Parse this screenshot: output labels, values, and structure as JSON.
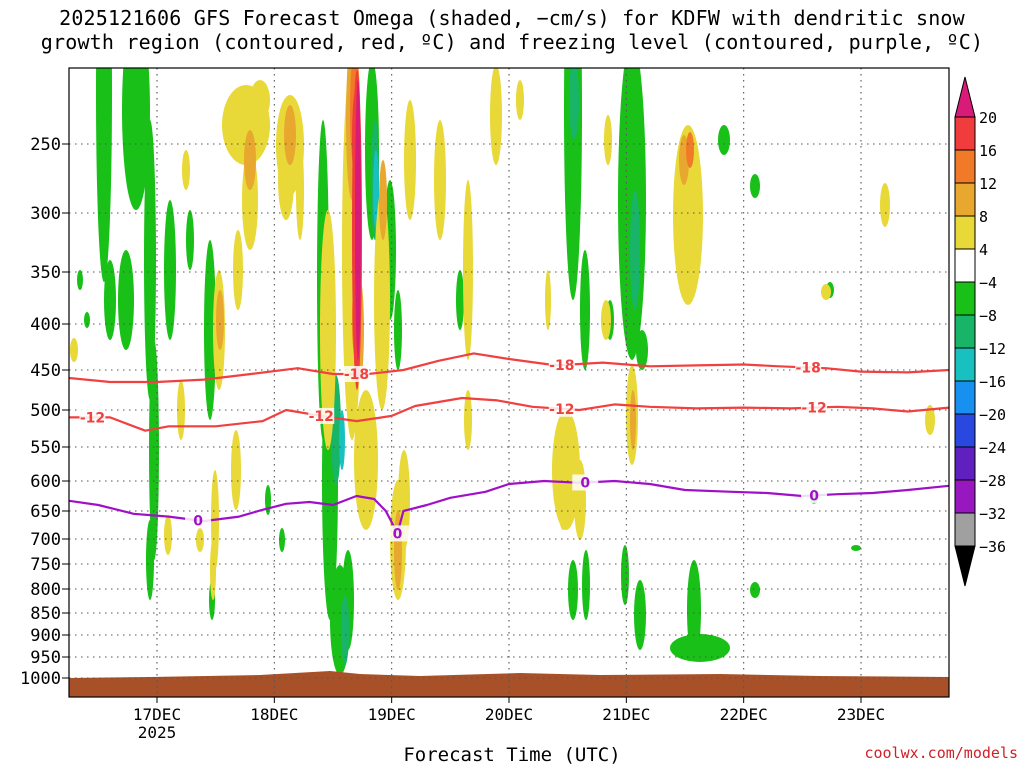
{
  "title": {
    "line1": "2025121606 GFS Forecast Omega (shaded, −cm/s) for KDFW with dendritic snow",
    "line2": "growth region (contoured, red, ºC) and freezing level (contoured, purple, ºC)"
  },
  "credit": "coolwx.com/models",
  "chart_data": {
    "type": "heatmap",
    "xlabel": "Forecast Time (UTC)",
    "ylabel": "",
    "x_ticks": [
      "17DEC",
      "18DEC",
      "19DEC",
      "20DEC",
      "21DEC",
      "22DEC",
      "23DEC"
    ],
    "x_year_label": "2025",
    "xlim_days": [
      16.25,
      23.75
    ],
    "y_ticks": [
      250,
      300,
      350,
      400,
      450,
      500,
      550,
      600,
      650,
      700,
      750,
      800,
      850,
      900,
      950,
      1000
    ],
    "ylim": [
      200,
      1020
    ],
    "colorbar": {
      "levels": [
        20,
        16,
        12,
        8,
        4,
        -4,
        -8,
        -12,
        -16,
        -20,
        -24,
        -28,
        -32,
        -36
      ],
      "colors": [
        "#d81b78",
        "#f03c3c",
        "#f07a28",
        "#e8a830",
        "#e8d838",
        "#ffffff",
        "#18c018",
        "#18b468",
        "#18c0c0",
        "#1890f0",
        "#2848e0",
        "#6020c0",
        "#9818c0",
        "#a0a0a0",
        "#000000"
      ]
    },
    "contours": {
      "minus18": {
        "label": "-18",
        "color": "#f04040",
        "points": [
          [
            16.25,
            460
          ],
          [
            16.6,
            465
          ],
          [
            17.0,
            465
          ],
          [
            17.4,
            462
          ],
          [
            17.8,
            455
          ],
          [
            18.2,
            448
          ],
          [
            18.5,
            455
          ],
          [
            18.8,
            455
          ],
          [
            19.1,
            450
          ],
          [
            19.4,
            440
          ],
          [
            19.7,
            432
          ],
          [
            20.0,
            438
          ],
          [
            20.4,
            445
          ],
          [
            20.8,
            442
          ],
          [
            21.2,
            446
          ],
          [
            21.6,
            445
          ],
          [
            22.0,
            444
          ],
          [
            22.3,
            446
          ],
          [
            22.7,
            448
          ],
          [
            23.0,
            452
          ],
          [
            23.4,
            453
          ],
          [
            23.75,
            450
          ]
        ],
        "label_days": [
          18.7,
          20.45,
          22.55
        ]
      },
      "minus12": {
        "label": "-12",
        "color": "#f04040",
        "points": [
          [
            16.25,
            510
          ],
          [
            16.6,
            510
          ],
          [
            16.9,
            528
          ],
          [
            17.1,
            522
          ],
          [
            17.5,
            522
          ],
          [
            17.9,
            515
          ],
          [
            18.1,
            500
          ],
          [
            18.4,
            508
          ],
          [
            18.7,
            515
          ],
          [
            19.0,
            508
          ],
          [
            19.2,
            495
          ],
          [
            19.6,
            485
          ],
          [
            19.9,
            488
          ],
          [
            20.2,
            496
          ],
          [
            20.6,
            500
          ],
          [
            20.9,
            493
          ],
          [
            21.2,
            496
          ],
          [
            21.6,
            498
          ],
          [
            22.0,
            497
          ],
          [
            22.4,
            498
          ],
          [
            22.8,
            496
          ],
          [
            23.1,
            498
          ],
          [
            23.4,
            502
          ],
          [
            23.75,
            497
          ]
        ],
        "label_days": [
          16.45,
          18.4,
          20.45,
          22.6
        ]
      },
      "freezing": {
        "label": "0",
        "color": "#a010c8",
        "points": [
          [
            16.25,
            633
          ],
          [
            16.5,
            640
          ],
          [
            16.8,
            655
          ],
          [
            17.1,
            660
          ],
          [
            17.4,
            668
          ],
          [
            17.7,
            660
          ],
          [
            17.9,
            648
          ],
          [
            18.1,
            638
          ],
          [
            18.3,
            635
          ],
          [
            18.5,
            640
          ],
          [
            18.7,
            625
          ],
          [
            18.85,
            630
          ],
          [
            18.95,
            650
          ],
          [
            19.05,
            690
          ],
          [
            19.1,
            650
          ],
          [
            19.3,
            640
          ],
          [
            19.5,
            628
          ],
          [
            19.8,
            618
          ],
          [
            20.0,
            605
          ],
          [
            20.3,
            600
          ],
          [
            20.6,
            603
          ],
          [
            20.9,
            600
          ],
          [
            21.2,
            605
          ],
          [
            21.5,
            615
          ],
          [
            21.9,
            618
          ],
          [
            22.2,
            620
          ],
          [
            22.5,
            625
          ],
          [
            22.8,
            622
          ],
          [
            23.1,
            620
          ],
          [
            23.4,
            615
          ],
          [
            23.75,
            608
          ]
        ],
        "label_days": [
          17.35,
          19.05,
          20.65,
          22.6
        ]
      }
    }
  }
}
